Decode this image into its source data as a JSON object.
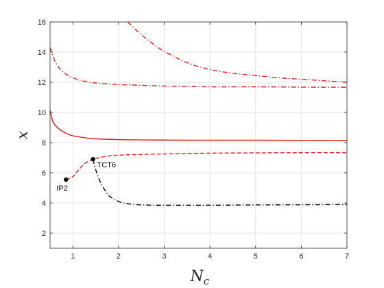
{
  "chart_data": {
    "type": "line",
    "title": "",
    "xlabel": {
      "main": "N",
      "sub": "c"
    },
    "ylabel": "x",
    "xlim": [
      0.5,
      7
    ],
    "ylim": [
      1,
      16
    ],
    "xticks": [
      1,
      2,
      3,
      4,
      5,
      6,
      7
    ],
    "yticks": [
      2,
      4,
      6,
      8,
      10,
      12,
      14,
      16
    ],
    "grid": true,
    "colors": {
      "red": "#e41a1c",
      "black": "#000000",
      "grid": "#e6e6e6",
      "axis": "#262626"
    },
    "series": [
      {
        "style": "dash-dot",
        "color": "red",
        "x": [
          2.2,
          2.5,
          2.8,
          3.0,
          3.5,
          4.0,
          4.5,
          5.0,
          5.5,
          6.0,
          6.5,
          7.0
        ],
        "y": [
          16.0,
          15.15,
          14.45,
          14.05,
          13.3,
          12.85,
          12.6,
          12.45,
          12.3,
          12.2,
          12.1,
          12.0
        ]
      },
      {
        "style": "dash-dot",
        "color": "red",
        "x": [
          0.5,
          0.6,
          0.7,
          0.8,
          0.9,
          1.0,
          1.2,
          1.5,
          2.0,
          2.5,
          3.0,
          4.0,
          5.0,
          6.0,
          7.0
        ],
        "y": [
          14.3,
          13.45,
          12.95,
          12.65,
          12.45,
          12.3,
          12.1,
          11.95,
          11.85,
          11.8,
          11.75,
          11.7,
          11.7,
          11.68,
          11.67
        ]
      },
      {
        "style": "solid",
        "color": "red",
        "x": [
          0.5,
          0.55,
          0.6,
          0.7,
          0.8,
          0.9,
          1.0,
          1.2,
          1.5,
          2.0,
          2.5,
          3.0,
          4.0,
          5.0,
          6.0,
          7.0
        ],
        "y": [
          10.15,
          9.5,
          9.2,
          8.9,
          8.7,
          8.55,
          8.45,
          8.35,
          8.25,
          8.2,
          8.18,
          8.17,
          8.16,
          8.16,
          8.15,
          8.15
        ]
      },
      {
        "style": "dash",
        "color": "red",
        "x": [
          0.85,
          1.0,
          1.1,
          1.2,
          1.3,
          1.44,
          1.6,
          1.8,
          2.0,
          2.5,
          3.0,
          4.0,
          5.0,
          6.0,
          7.0
        ],
        "y": [
          5.55,
          5.75,
          6.1,
          6.45,
          6.7,
          6.9,
          7.02,
          7.12,
          7.17,
          7.22,
          7.25,
          7.3,
          7.32,
          7.33,
          7.33
        ]
      },
      {
        "style": "dash-dot",
        "color": "black",
        "x": [
          1.44,
          1.5,
          1.6,
          1.7,
          1.8,
          2.0,
          2.2,
          2.5,
          3.0,
          4.0,
          5.0,
          6.0,
          7.0
        ],
        "y": [
          6.9,
          6.2,
          5.4,
          4.85,
          4.45,
          4.1,
          3.95,
          3.87,
          3.85,
          3.85,
          3.87,
          3.88,
          3.9
        ]
      }
    ],
    "annotations": [
      {
        "label": "IP2",
        "x": 0.85,
        "y": 5.55
      },
      {
        "label": "TCT6",
        "x": 1.44,
        "y": 6.9
      }
    ]
  }
}
